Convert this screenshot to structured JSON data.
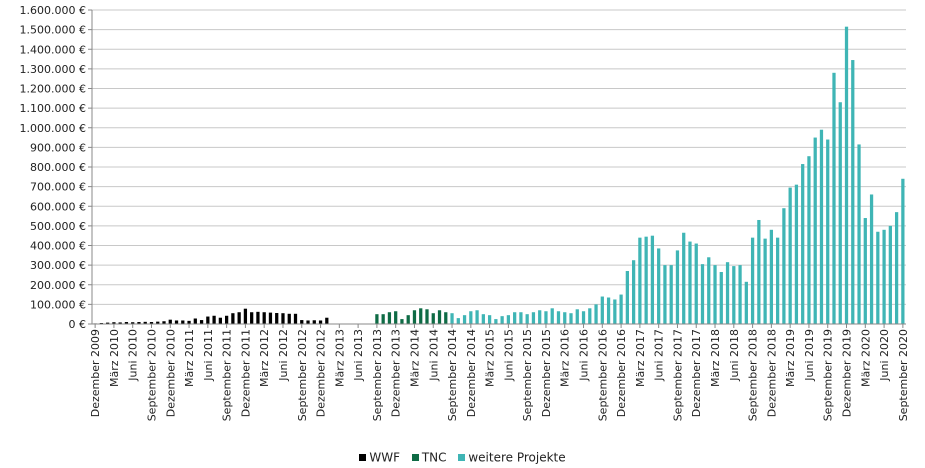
{
  "chart_data": {
    "type": "bar",
    "title": "",
    "xlabel": "",
    "ylabel": "",
    "ylim": [
      0,
      1600000
    ],
    "grid": true,
    "legend_position": "bottom",
    "y_ticks": [
      "0 €",
      "100.000 €",
      "200.000 €",
      "300.000 €",
      "400.000 €",
      "500.000 €",
      "600.000 €",
      "700.000 €",
      "800.000 €",
      "900.000 €",
      "1.000.000 €",
      "1.100.000 €",
      "1.200.000 €",
      "1.300.000 €",
      "1.400.000 €",
      "1.500.000 €",
      "1.600.000 €"
    ],
    "x_tick_labels": [
      "Dezember 2009",
      "März 2010",
      "Juni 2010",
      "September 2010",
      "Dezember 2010",
      "März 2011",
      "Juni 2011",
      "September 2011",
      "Dezember 2011",
      "März 2012",
      "Juni 2012",
      "September 2012",
      "Dezember 2012",
      "März 2013",
      "Juni 2013",
      "September 2013",
      "Dezember 2013",
      "März 2014",
      "Juni 2014",
      "September 2014",
      "Dezember 2014",
      "März 2015",
      "Juni 2015",
      "September 2015",
      "Dezember 2015",
      "März 2016",
      "Juni 2016",
      "September 2016",
      "Dezember 2016",
      "März 2017",
      "Juni 2017",
      "September 2017",
      "Dezember 2017",
      "März 2018",
      "Juni 2018",
      "September 2018",
      "Dezember 2018",
      "März 2019",
      "Juni 2019",
      "September 2019",
      "Dezember 2019",
      "März 2020",
      "Juni 2020",
      "September 2020"
    ],
    "series": [
      {
        "name": "WWF",
        "color": "#000000",
        "values": [
          3000,
          5000,
          7000,
          9000,
          8000,
          10000,
          9000,
          10000,
          11000,
          10000,
          12000,
          14000,
          22000,
          18000,
          18000,
          16000,
          28000,
          20000,
          38000,
          42000,
          32000,
          42000,
          55000,
          60000,
          78000,
          60000,
          62000,
          60000,
          58000,
          56000,
          55000,
          52000,
          52000,
          20000,
          18000,
          19000,
          18000,
          32000
        ]
      },
      {
        "name": "TNC",
        "color": "#0e6b45",
        "values": [
          50000,
          50000,
          60000,
          65000,
          25000,
          45000,
          70000,
          80000,
          75000,
          55000,
          70000,
          60000
        ]
      },
      {
        "name": "weitere Projekte",
        "color": "#3fb5b5",
        "values": [
          55000,
          30000,
          45000,
          65000,
          70000,
          50000,
          45000,
          25000,
          40000,
          45000,
          60000,
          60000,
          50000,
          60000,
          70000,
          65000,
          80000,
          65000,
          60000,
          55000,
          75000,
          65000,
          80000,
          100000,
          140000,
          135000,
          125000,
          150000,
          270000,
          325000,
          440000,
          445000,
          450000,
          385000,
          300000,
          300000,
          375000,
          465000,
          420000,
          410000,
          305000,
          340000,
          300000,
          265000,
          315000,
          295000,
          300000,
          215000,
          440000,
          530000,
          435000,
          480000,
          440000,
          590000,
          695000,
          710000,
          815000,
          855000,
          950000,
          990000,
          940000,
          1280000,
          1130000,
          1515000,
          1345000,
          915000,
          540000,
          660000,
          470000,
          480000,
          500000,
          570000,
          740000
        ]
      }
    ]
  },
  "legend": {
    "items": [
      {
        "label": "WWF",
        "color": "#000000"
      },
      {
        "label": "TNC",
        "color": "#0e6b45"
      },
      {
        "label": "weitere Projekte",
        "color": "#3fb5b5"
      }
    ]
  }
}
